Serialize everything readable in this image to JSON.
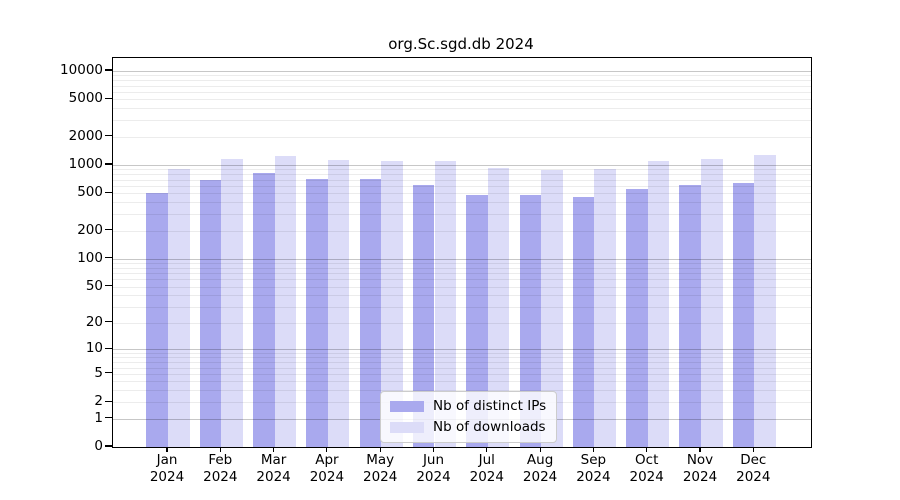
{
  "title": "org.Sc.sgd.db 2024",
  "chart_data": {
    "type": "bar",
    "title": "org.Sc.sgd.db 2024",
    "scale": "log1p",
    "grid": true,
    "legend_position": "bottom-center",
    "categories": [
      "Jan",
      "Feb",
      "Mar",
      "Apr",
      "May",
      "Jun",
      "Jul",
      "Aug",
      "Sep",
      "Oct",
      "Nov",
      "Dec"
    ],
    "year": "2024",
    "series": [
      {
        "name": "Nb of distinct IPs",
        "color": "#a9a9ee",
        "values": [
          505,
          690,
          815,
          705,
          705,
          610,
          480,
          480,
          455,
          555,
          605,
          640
        ]
      },
      {
        "name": "Nb of downloads",
        "color": "#dcdcf8",
        "values": [
          900,
          1160,
          1255,
          1140,
          1110,
          1110,
          925,
          875,
          905,
          1100,
          1165,
          1265
        ]
      }
    ],
    "y_ticks": [
      10000,
      5000,
      2000,
      1000,
      500,
      200,
      100,
      50,
      20,
      10,
      5,
      2,
      1,
      0
    ],
    "ylim": [
      0,
      13760
    ],
    "xlabel": "",
    "ylabel": ""
  }
}
